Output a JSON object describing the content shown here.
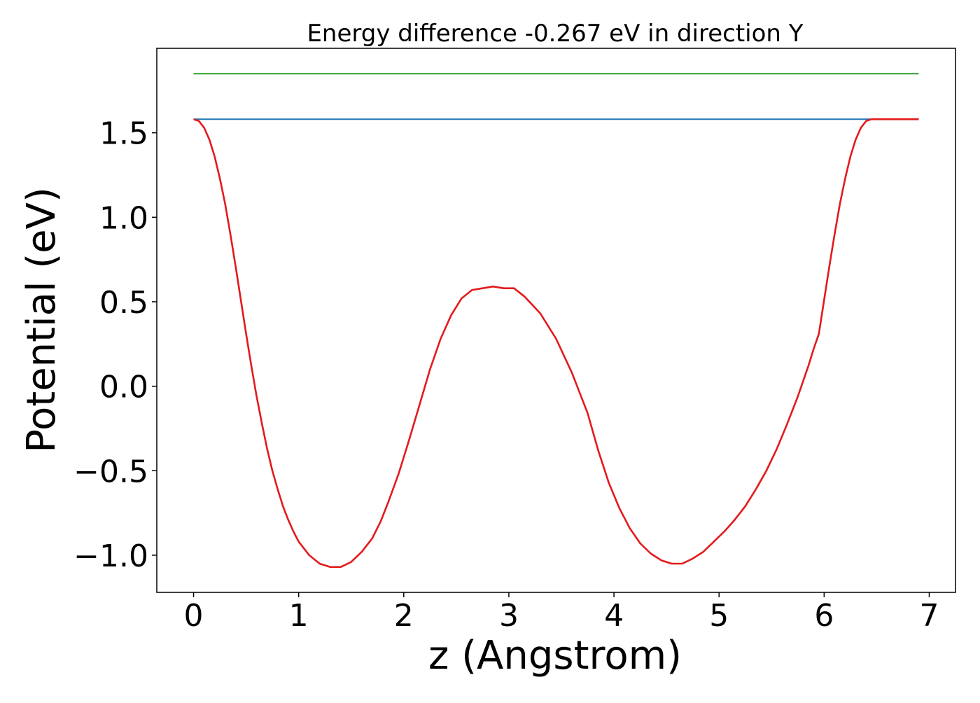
{
  "chart_data": {
    "type": "line",
    "title": "Energy difference -0.267 eV in direction Y",
    "xlabel": "z (Angstrom)",
    "ylabel": "Potential (eV)",
    "xlim": [
      -0.35,
      7.25
    ],
    "ylim": [
      -1.22,
      2.0
    ],
    "xticks": [
      0,
      1,
      2,
      3,
      4,
      5,
      6,
      7
    ],
    "xtick_labels": [
      "0",
      "1",
      "2",
      "3",
      "4",
      "5",
      "6",
      "7"
    ],
    "yticks": [
      -1.0,
      -0.5,
      0.0,
      0.5,
      1.0,
      1.5
    ],
    "ytick_labels": [
      "−1.0",
      "−0.5",
      "0.0",
      "0.5",
      "1.0",
      "1.5"
    ],
    "grid": false,
    "legend": "none",
    "series": [
      {
        "color": "#2ca02c",
        "x": [
          0,
          6.9
        ],
        "y": [
          1.85,
          1.85
        ]
      },
      {
        "color": "#1f77b4",
        "x": [
          0,
          6.9
        ],
        "y": [
          1.58,
          1.58
        ]
      },
      {
        "color": "#e31a1c",
        "x": [
          0.0,
          0.05,
          0.1,
          0.15,
          0.2,
          0.25,
          0.3,
          0.35,
          0.4,
          0.45,
          0.5,
          0.55,
          0.6,
          0.65,
          0.7,
          0.75,
          0.8,
          0.85,
          0.9,
          0.95,
          1.0,
          1.1,
          1.2,
          1.3,
          1.4,
          1.5,
          1.6,
          1.7,
          1.78,
          1.85,
          1.95,
          2.05,
          2.15,
          2.25,
          2.35,
          2.45,
          2.55,
          2.65,
          2.75,
          2.85,
          2.95,
          3.05,
          3.15,
          3.3,
          3.45,
          3.6,
          3.75,
          3.85,
          3.95,
          4.05,
          4.15,
          4.25,
          4.35,
          4.45,
          4.55,
          4.65,
          4.75,
          4.85,
          4.95,
          5.05,
          5.15,
          5.25,
          5.35,
          5.45,
          5.55,
          5.65,
          5.75,
          5.85,
          5.9,
          5.95,
          6.0,
          6.05,
          6.1,
          6.15,
          6.2,
          6.25,
          6.3,
          6.35,
          6.4,
          6.45,
          6.5,
          6.55,
          6.6,
          6.65,
          6.7,
          6.75,
          6.8,
          6.85,
          6.9
        ],
        "y": [
          1.58,
          1.57,
          1.53,
          1.46,
          1.36,
          1.23,
          1.08,
          0.9,
          0.71,
          0.51,
          0.31,
          0.12,
          -0.06,
          -0.22,
          -0.37,
          -0.5,
          -0.61,
          -0.71,
          -0.79,
          -0.86,
          -0.92,
          -1.0,
          -1.05,
          -1.07,
          -1.07,
          -1.04,
          -0.98,
          -0.9,
          -0.8,
          -0.69,
          -0.52,
          -0.32,
          -0.11,
          0.1,
          0.28,
          0.42,
          0.52,
          0.57,
          0.58,
          0.59,
          0.58,
          0.58,
          0.53,
          0.43,
          0.28,
          0.08,
          -0.16,
          -0.38,
          -0.57,
          -0.72,
          -0.84,
          -0.93,
          -0.99,
          -1.03,
          -1.05,
          -1.05,
          -1.02,
          -0.98,
          -0.92,
          -0.86,
          -0.79,
          -0.71,
          -0.61,
          -0.5,
          -0.37,
          -0.22,
          -0.06,
          0.12,
          0.22,
          0.31,
          0.51,
          0.71,
          0.9,
          1.08,
          1.23,
          1.36,
          1.46,
          1.53,
          1.57,
          1.58,
          1.58,
          1.58,
          1.58,
          1.58,
          1.58,
          1.58,
          1.58,
          1.58,
          1.58
        ]
      }
    ]
  }
}
